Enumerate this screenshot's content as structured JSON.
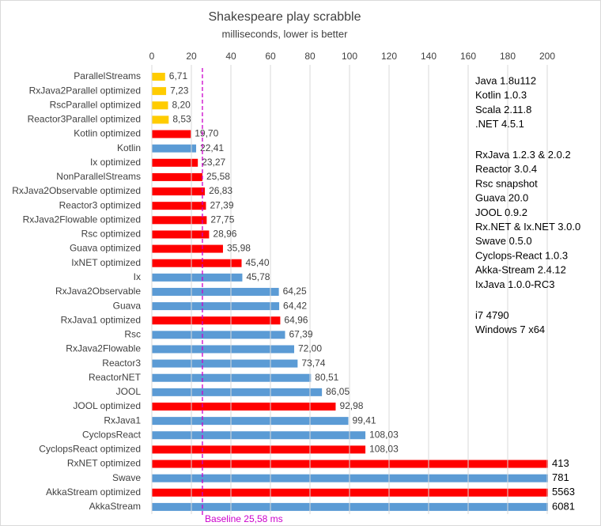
{
  "chart_data": {
    "type": "hbar",
    "title": "Shakespeare play scrabble",
    "subtitle": "milliseconds, lower is better",
    "categories": [
      "ParallelStreams",
      "RxJava2Parallel optimized",
      "RscParallel optimized",
      "Reactor3Parallel optimized",
      "Kotlin optimized",
      "Kotlin",
      "Ix optimized",
      "NonParallelStreams",
      "RxJava2Observable optimized",
      "Reactor3 optimized",
      "RxJava2Flowable optimized",
      "Rsc optimized",
      "Guava optimized",
      "IxNET optimized",
      "Ix",
      "RxJava2Observable",
      "Guava",
      "RxJava1 optimized",
      "Rsc",
      "RxJava2Flowable",
      "Reactor3",
      "ReactorNET",
      "JOOL",
      "JOOL optimized",
      "RxJava1",
      "CyclopsReact",
      "CyclopsReact optimized",
      "RxNET optimized",
      "Swave",
      "AkkaStream optimized",
      "AkkaStream"
    ],
    "values": [
      6.71,
      7.23,
      8.2,
      8.53,
      19.7,
      22.41,
      23.27,
      25.58,
      26.83,
      27.39,
      27.75,
      28.96,
      35.98,
      45.4,
      45.78,
      64.25,
      64.42,
      64.96,
      67.39,
      72.0,
      73.74,
      80.51,
      86.05,
      92.98,
      99.41,
      108.03,
      108.03,
      413,
      781,
      5563,
      6081
    ],
    "value_labels": [
      "6,71",
      "7,23",
      "8,20",
      "8,53",
      "19,70",
      "22,41",
      "23,27",
      "25,58",
      "26,83",
      "27,39",
      "27,75",
      "28,96",
      "35,98",
      "45,40",
      "45,78",
      "64,25",
      "64,42",
      "64,96",
      "67,39",
      "72,00",
      "73,74",
      "80,51",
      "86,05",
      "92,98",
      "99,41",
      "108,03",
      "108,03",
      "413",
      "781",
      "5563",
      "6081"
    ],
    "colors": [
      "#ffcc00",
      "#ffcc00",
      "#ffcc00",
      "#ffcc00",
      "#ff0000",
      "#5b9bd5",
      "#ff0000",
      "#ff0000",
      "#ff0000",
      "#ff0000",
      "#ff0000",
      "#ff0000",
      "#ff0000",
      "#ff0000",
      "#5b9bd5",
      "#5b9bd5",
      "#5b9bd5",
      "#ff0000",
      "#5b9bd5",
      "#5b9bd5",
      "#5b9bd5",
      "#5b9bd5",
      "#5b9bd5",
      "#ff0000",
      "#5b9bd5",
      "#5b9bd5",
      "#ff0000",
      "#ff0000",
      "#5b9bd5",
      "#ff0000",
      "#5b9bd5"
    ],
    "xlim": [
      0,
      200
    ],
    "xticks": [
      0,
      20,
      40,
      60,
      80,
      100,
      120,
      140,
      160,
      180,
      200
    ],
    "grid": true,
    "baseline": {
      "value": 25.58,
      "label": "Baseline 25,58 ms",
      "color": "#cc00cc"
    },
    "notes": [
      [
        "Java 1.8u112",
        "Kotlin 1.0.3",
        "Scala 2.11.8",
        ".NET 4.5.1"
      ],
      [
        "RxJava 1.2.3 & 2.0.2",
        "Reactor 3.0.4",
        "Rsc snapshot",
        "Guava 20.0",
        "JOOL 0.9.2",
        "Rx.NET & Ix.NET 3.0.0",
        "Swave 0.5.0",
        "Cyclops-React 1.0.3",
        "Akka-Stream 2.4.12",
        "IxJava 1.0.0-RC3"
      ],
      [
        "i7 4790",
        "Windows 7 x64"
      ]
    ]
  }
}
